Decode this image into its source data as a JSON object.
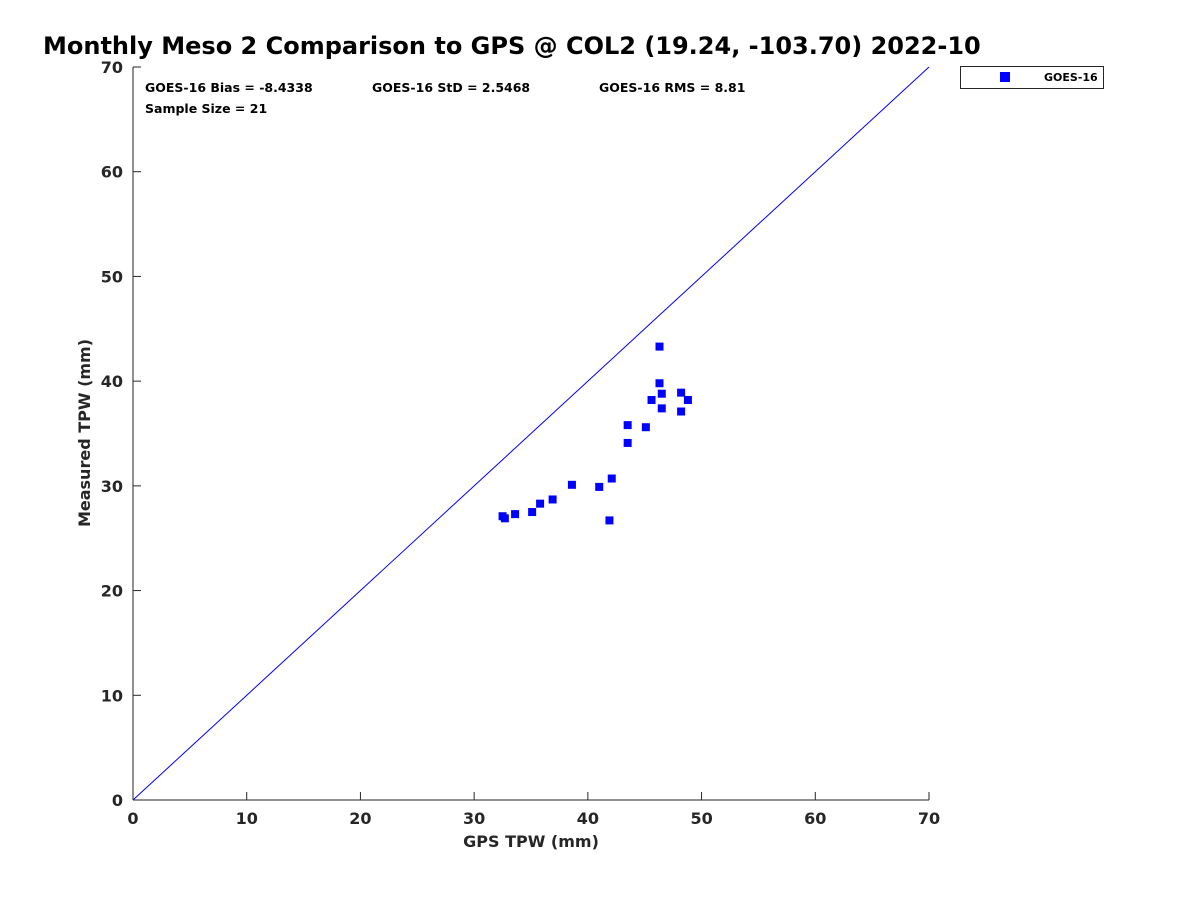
{
  "chart_data": {
    "type": "scatter",
    "title": "Monthly Meso 2 Comparison to GPS @ COL2 (19.24, -103.70) 2022-10",
    "xlabel": "GPS TPW (mm)",
    "ylabel": "Measured TPW (mm)",
    "xlim": [
      0,
      70
    ],
    "ylim": [
      0,
      70
    ],
    "xticks": [
      "0",
      "10",
      "20",
      "30",
      "40",
      "50",
      "60",
      "70"
    ],
    "yticks": [
      "0",
      "10",
      "20",
      "30",
      "40",
      "50",
      "60",
      "70"
    ],
    "grid": false,
    "legend_position": "outside-top-right",
    "reference_line": {
      "type": "one-to-one",
      "x": [
        0,
        70
      ],
      "y": [
        0,
        70
      ],
      "color": "#0000ff"
    },
    "stats": {
      "bias": "GOES-16 Bias = -8.4338",
      "std": "GOES-16 StD = 2.5468",
      "rms": "GOES-16 RMS = 8.81",
      "sample_size": "Sample Size = 21"
    },
    "series": [
      {
        "name": "GOES-16",
        "color": "#0000ff",
        "marker": "square",
        "points": [
          [
            32.5,
            27.1
          ],
          [
            32.7,
            26.9
          ],
          [
            33.6,
            27.3
          ],
          [
            35.1,
            27.5
          ],
          [
            35.8,
            28.3
          ],
          [
            36.9,
            28.7
          ],
          [
            38.6,
            30.1
          ],
          [
            41.0,
            29.9
          ],
          [
            41.9,
            26.7
          ],
          [
            42.1,
            30.7
          ],
          [
            43.5,
            34.1
          ],
          [
            43.5,
            35.8
          ],
          [
            45.1,
            35.6
          ],
          [
            45.6,
            38.2
          ],
          [
            46.3,
            43.3
          ],
          [
            46.3,
            39.8
          ],
          [
            46.5,
            38.8
          ],
          [
            46.5,
            37.4
          ],
          [
            48.2,
            38.9
          ],
          [
            48.2,
            37.1
          ],
          [
            48.8,
            38.2
          ]
        ]
      }
    ]
  }
}
